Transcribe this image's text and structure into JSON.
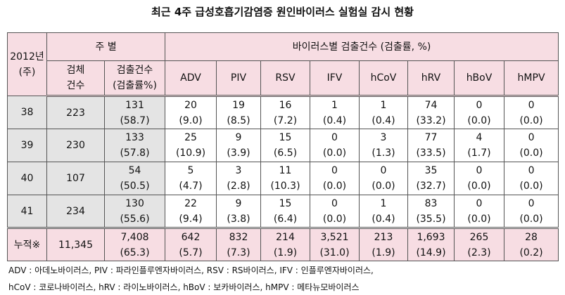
{
  "title": "최근 4주 급성호흡기감염증 원인바이러스 실험실 감시 현황",
  "table": {
    "header": {
      "year": [
        "2012년",
        "(주)"
      ],
      "weekly": "주 별",
      "sample": [
        "검체",
        "건수"
      ],
      "detected": [
        "검출건수",
        "(검출률%)"
      ],
      "virus_group": "바이러스별 검출건수 (검출률, %)",
      "viruses": [
        "ADV",
        "PIV",
        "RSV",
        "IFV",
        "hCoV",
        "hRV",
        "hBoV",
        "hMPV"
      ]
    },
    "rows": [
      {
        "week": "38",
        "samples": "223",
        "detected": [
          "131",
          "(58.7)"
        ],
        "viruses": [
          [
            "20",
            "(9.0)"
          ],
          [
            "19",
            "(8.5)"
          ],
          [
            "16",
            "(7.2)"
          ],
          [
            "1",
            "(0.4)"
          ],
          [
            "1",
            "(0.4)"
          ],
          [
            "74",
            "(33.2)"
          ],
          [
            "0",
            "(0.0)"
          ],
          [
            "0",
            "(0.0)"
          ]
        ]
      },
      {
        "week": "39",
        "samples": "230",
        "detected": [
          "133",
          "(57.8)"
        ],
        "viruses": [
          [
            "25",
            "(10.9)"
          ],
          [
            "9",
            "(3.9)"
          ],
          [
            "15",
            "(6.5)"
          ],
          [
            "0",
            "(0.0)"
          ],
          [
            "3",
            "(1.3)"
          ],
          [
            "77",
            "(33.5)"
          ],
          [
            "4",
            "(1.7)"
          ],
          [
            "0",
            "(0.0)"
          ]
        ]
      },
      {
        "week": "40",
        "samples": "107",
        "detected": [
          "54",
          "(50.5)"
        ],
        "viruses": [
          [
            "5",
            "(4.7)"
          ],
          [
            "3",
            "(2.8)"
          ],
          [
            "11",
            "(10.3)"
          ],
          [
            "0",
            "(0.0)"
          ],
          [
            "0",
            "(0.0)"
          ],
          [
            "35",
            "(32.7)"
          ],
          [
            "0",
            "(0.0)"
          ],
          [
            "0",
            "(0.0)"
          ]
        ]
      },
      {
        "week": "41",
        "samples": "234",
        "detected": [
          "130",
          "(55.6)"
        ],
        "viruses": [
          [
            "22",
            "(9.4)"
          ],
          [
            "9",
            "(3.8)"
          ],
          [
            "15",
            "(6.4)"
          ],
          [
            "0",
            "(0.0)"
          ],
          [
            "1",
            "(0.4)"
          ],
          [
            "83",
            "(35.5)"
          ],
          [
            "0",
            "(0.0)"
          ],
          [
            "0",
            "(0.0)"
          ]
        ]
      },
      {
        "week": "누적※",
        "samples": "11,345",
        "detected": [
          "7,408",
          "(65.3)"
        ],
        "viruses": [
          [
            "642",
            "(5.7)"
          ],
          [
            "832",
            "(7.3)"
          ],
          [
            "214",
            "(1.9)"
          ],
          [
            "3,521",
            "(31.0)"
          ],
          [
            "213",
            "(1.9)"
          ],
          [
            "1,693",
            "(14.9)"
          ],
          [
            "265",
            "(2.3)"
          ],
          [
            "28",
            "(0.2)"
          ]
        ]
      }
    ]
  },
  "footnotes": [
    "ADV : 아데노바이러스, PIV : 파라인플루엔자바이러스, RSV : RS바이러스, IFV : 인플루엔자바이러스,",
    "hCoV : 코로나바이러스, hRV : 라이노바이러스, hBoV : 보카바이러스, hMPV : 메타뉴모바이러스"
  ]
}
